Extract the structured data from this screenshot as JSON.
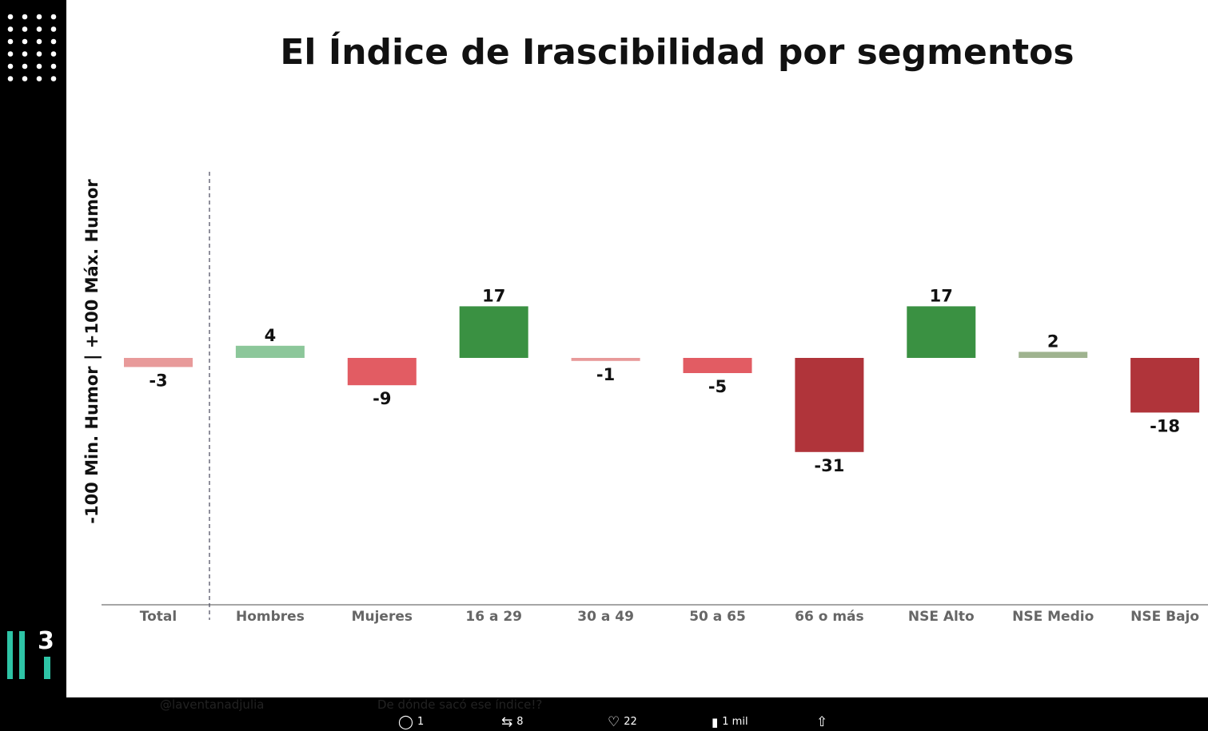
{
  "chart_data": {
    "type": "bar",
    "title": "El Índice de Irascibilidad por segmentos",
    "ylabel": "-100 Min. Humor | +100 Máx. Humor",
    "xlabel": "",
    "ylim": [
      -100,
      100
    ],
    "grid": false,
    "categories": [
      "Total",
      "Hombres",
      "Mujeres",
      "16 a 29",
      "30 a 49",
      "50 a 65",
      "66 o más",
      "NSE Alto",
      "NSE Medio",
      "NSE Bajo"
    ],
    "values": [
      -3,
      4,
      -9,
      17,
      -1,
      -5,
      -31,
      17,
      2,
      -18
    ],
    "colors": [
      "#e89a9a",
      "#8cc79a",
      "#e25c63",
      "#3a9142",
      "#e89a9a",
      "#e25c63",
      "#b0343a",
      "#3a9142",
      "#9fb38f",
      "#b0343a"
    ]
  },
  "post": {
    "handle": "@laventanadjulia",
    "reply_text": "De dónde sacó ese índice!?",
    "replies": "1",
    "reposts": "8",
    "likes": "22",
    "views": "1 mil"
  },
  "logo": {
    "text": "3"
  }
}
